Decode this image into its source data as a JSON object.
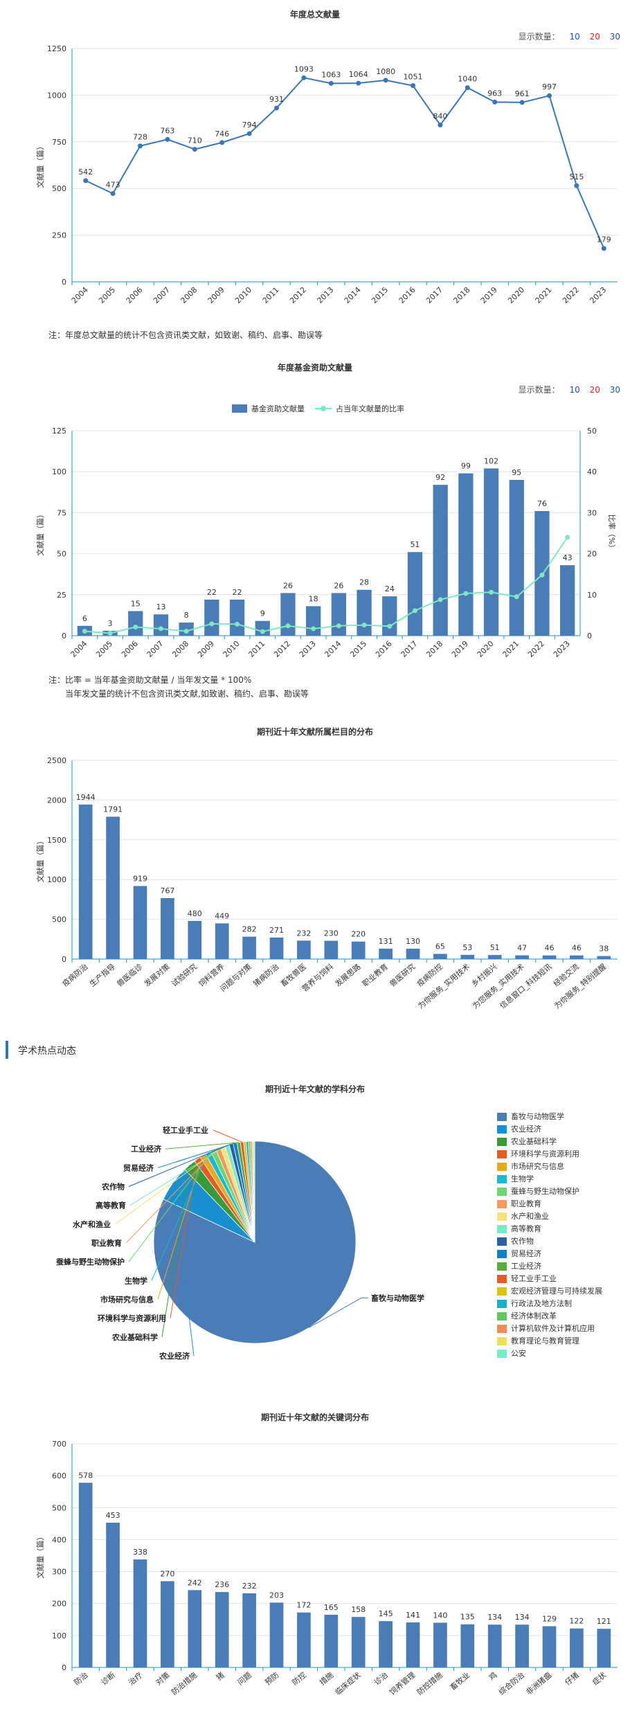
{
  "count_bar": {
    "label": "显示数量：",
    "options": [
      "10",
      "20",
      "30"
    ],
    "colors": [
      "#1e4fd0",
      "#e02020",
      "#1e4fd0"
    ]
  },
  "chart_data": [
    {
      "id": "annual",
      "type": "line",
      "title": "年度总文献量",
      "ylabel": "文献量（篇）",
      "ylim": [
        0,
        1250
      ],
      "yticks": [
        0,
        250,
        500,
        750,
        1000,
        1250
      ],
      "categories": [
        "2004",
        "2005",
        "2006",
        "2007",
        "2008",
        "2009",
        "2010",
        "2011",
        "2012",
        "2013",
        "2014",
        "2015",
        "2016",
        "2017",
        "2018",
        "2019",
        "2020",
        "2021",
        "2022",
        "2023"
      ],
      "values": [
        542,
        473,
        728,
        763,
        710,
        746,
        794,
        931,
        1093,
        1063,
        1064,
        1080,
        1051,
        840,
        1040,
        963,
        961,
        997,
        515,
        179
      ],
      "color": "#3a75b4"
    },
    {
      "id": "fund",
      "type": "bar+line",
      "title": "年度基金资助文献量",
      "ylabel": "文献量（篇）",
      "ylabel_right": "比率（%）",
      "ylim": [
        0,
        125
      ],
      "yticks": [
        0,
        25,
        50,
        75,
        100,
        125
      ],
      "ylim_right": [
        0,
        50
      ],
      "yticks_right": [
        0,
        10,
        20,
        30,
        40,
        50
      ],
      "categories": [
        "2004",
        "2005",
        "2006",
        "2007",
        "2008",
        "2009",
        "2010",
        "2011",
        "2012",
        "2013",
        "2014",
        "2015",
        "2016",
        "2017",
        "2018",
        "2019",
        "2020",
        "2021",
        "2022",
        "2023"
      ],
      "series": [
        {
          "name": "基金资助文献量",
          "values": [
            6,
            3,
            15,
            13,
            8,
            22,
            22,
            9,
            26,
            18,
            26,
            28,
            24,
            51,
            92,
            99,
            102,
            95,
            76,
            43
          ],
          "color": "#4a7db5"
        },
        {
          "name": "占当年文献量的比率",
          "values": [
            1.1,
            0.6,
            2.1,
            1.7,
            1.1,
            2.9,
            2.8,
            1.0,
            2.4,
            1.7,
            2.4,
            2.6,
            2.3,
            6.1,
            8.8,
            10.3,
            10.6,
            9.5,
            14.8,
            24.0
          ],
          "color": "#7ee8c4"
        }
      ]
    },
    {
      "id": "columns",
      "type": "bar",
      "title": "期刊近十年文献所属栏目的分布",
      "ylabel": "文献量（篇）",
      "ylim": [
        0,
        2500
      ],
      "yticks": [
        0,
        500,
        1000,
        1500,
        2000,
        2500
      ],
      "categories": [
        "疫病防治",
        "生产指导",
        "兽医临诊",
        "发展对策",
        "试验研究",
        "饲料营养",
        "问题与对策",
        "猪病防治",
        "畜牧兽医",
        "营养与饲料",
        "发展思路",
        "职业教育",
        "兽医研究",
        "疫病防控",
        "为你服务_实用技术",
        "乡村振兴",
        "为您服务_实用技术",
        "信息窗口_科技短讯",
        "经验交流",
        "为你服务_特别提醒"
      ],
      "values": [
        1944,
        1791,
        919,
        767,
        480,
        449,
        282,
        271,
        232,
        230,
        220,
        131,
        130,
        65,
        53,
        51,
        47,
        46,
        46,
        38
      ],
      "color": "#4a7db5"
    },
    {
      "id": "subjects",
      "type": "pie",
      "title": "期刊近十年文献的学科分布",
      "labels": [
        "畜牧与动物医学",
        "农业经济",
        "农业基础科学",
        "环境科学与资源利用",
        "市场研究与信息",
        "生物学",
        "蚕蜂与野生动物保护",
        "职业教育",
        "水产和渔业",
        "高等教育",
        "农作物",
        "贸易经济",
        "工业经济",
        "轻工业手工业",
        "宏观经济管理与可持续发展",
        "行政法及地方法制",
        "经济体制改革",
        "计算机软件及计算机应用",
        "教育理论与教育管理",
        "公安"
      ],
      "values": [
        8200,
        580,
        200,
        110,
        100,
        90,
        85,
        80,
        75,
        70,
        65,
        60,
        55,
        50,
        40,
        35,
        30,
        28,
        25,
        20
      ],
      "colors": [
        "#4a7db5",
        "#1a8fd0",
        "#3a9a3a",
        "#e65a24",
        "#e8a91b",
        "#17b9d4",
        "#6fd66f",
        "#f59a5a",
        "#f5e27a",
        "#7ee8c4",
        "#2a5fa8",
        "#0b82c4",
        "#5aaa3c",
        "#ea5a2a",
        "#d9c21c",
        "#18aed0",
        "#63c763",
        "#f38c54",
        "#f0dc64",
        "#78ecc8"
      ],
      "callouts": [
        "畜牧与动物医学",
        "农业经济",
        "农业基础科学",
        "环境科学与资源利用",
        "市场研究与信息",
        "生物学",
        "蚕蜂与野生动物保护",
        "职业教育",
        "水产和渔业",
        "高等教育",
        "农作物",
        "贸易经济",
        "工业经济",
        "轻工业手工业"
      ]
    },
    {
      "id": "keywords",
      "type": "bar",
      "title": "期刊近十年文献的关键词分布",
      "ylabel": "文献量（篇）",
      "ylim": [
        0,
        700
      ],
      "yticks": [
        0,
        100,
        200,
        300,
        400,
        500,
        600,
        700
      ],
      "categories": [
        "防治",
        "诊断",
        "治疗",
        "对策",
        "防治措施",
        "猪",
        "问题",
        "预防",
        "防控",
        "措施",
        "临床症状",
        "诊治",
        "饲养管理",
        "防控措施",
        "畜牧业",
        "鸡",
        "综合防治",
        "非洲猪瘟",
        "仔猪",
        "症状"
      ],
      "values": [
        578,
        453,
        338,
        270,
        242,
        236,
        232,
        203,
        172,
        165,
        158,
        145,
        141,
        140,
        135,
        134,
        134,
        129,
        122,
        121
      ],
      "color": "#4a7db5"
    }
  ],
  "notes": {
    "annual": "注：年度总文献量的统计不包含资讯类文献，如致谢、稿约、启事、勘误等",
    "fund_1": "注：比率 = 当年基金资助文献量 / 当年发文量 * 100%",
    "fund_2": "当年发文量的统计不包含资讯类文献,如致谢、稿约、启事、勘误等"
  },
  "section": {
    "title": "学术热点动态"
  }
}
